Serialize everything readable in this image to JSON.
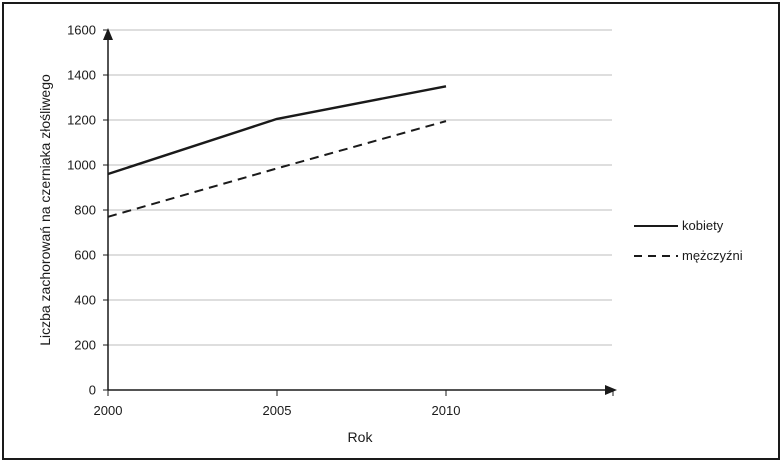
{
  "chart_data": {
    "type": "line",
    "title": "",
    "xlabel": "Rok",
    "ylabel": "Liczba zachorowań na czerniaka złośliwego",
    "x_ticks": [
      "2000",
      "2005",
      "2010"
    ],
    "y_ticks": [
      "0",
      "200",
      "400",
      "600",
      "800",
      "1000",
      "1200",
      "1400",
      "1600"
    ],
    "xlim": [
      2000,
      2015
    ],
    "ylim": [
      0,
      1600
    ],
    "grid": "horizontal",
    "legend_position": "right",
    "series": [
      {
        "name": "kobiety",
        "style": "solid",
        "color": "#1a1a1a",
        "x": [
          2000,
          2005,
          2010
        ],
        "y": [
          960,
          1205,
          1350
        ]
      },
      {
        "name": "mężczyźni",
        "style": "dashed",
        "color": "#1a1a1a",
        "x": [
          2000,
          2005,
          2010
        ],
        "y": [
          770,
          985,
          1195
        ]
      }
    ]
  }
}
